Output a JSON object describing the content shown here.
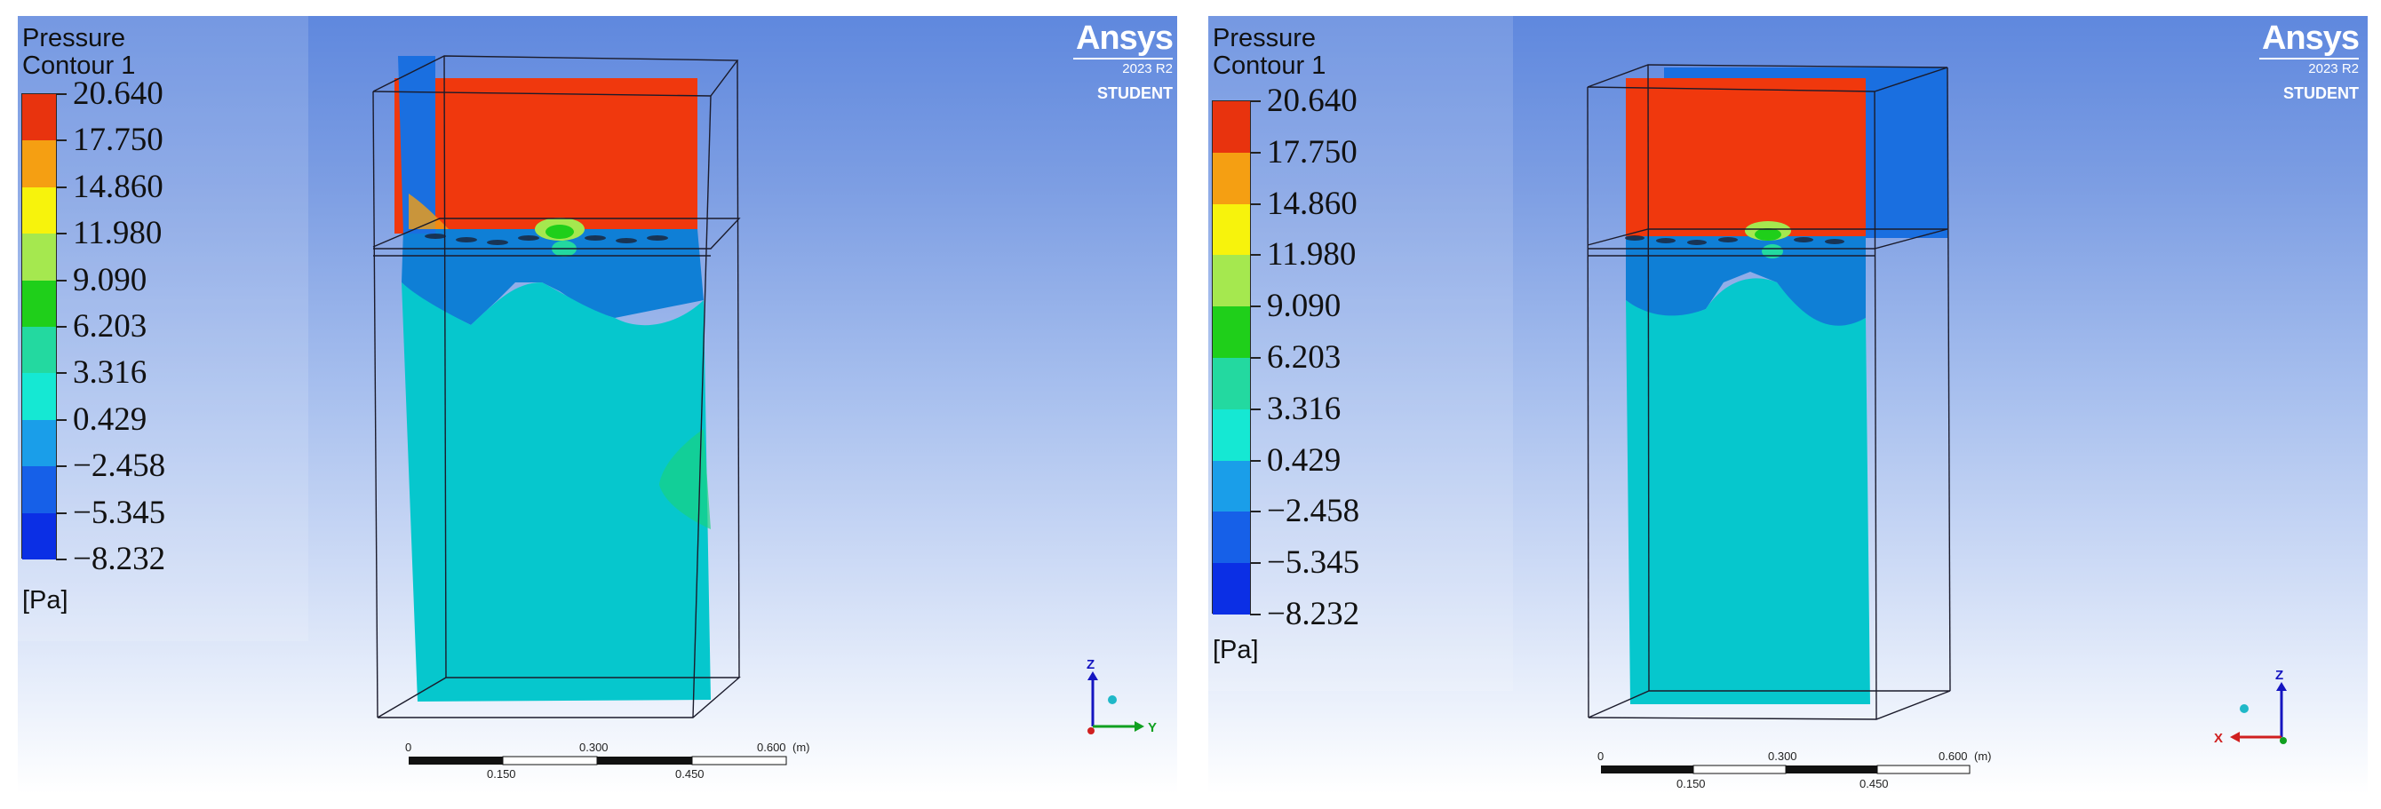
{
  "panels": [
    {
      "legend": {
        "title": "Pressure",
        "subtitle": "Contour 1",
        "values": [
          "20.640",
          "17.750",
          "14.860",
          "11.980",
          "9.090",
          "6.203",
          "3.316",
          "0.429",
          "−2.458",
          "−5.345",
          "−8.232"
        ],
        "unit": "[Pa]"
      },
      "logo": {
        "name": "Ansys",
        "version": "2023 R2",
        "edition": "STUDENT"
      },
      "scale": {
        "top_labels": [
          "0",
          "0.300",
          "0.600"
        ],
        "unit": "(m)",
        "bottom_labels": [
          "0.150",
          "0.450"
        ]
      },
      "axes": {
        "labels": [
          "Z",
          "Y"
        ]
      }
    },
    {
      "legend": {
        "title": "Pressure",
        "subtitle": "Contour 1",
        "values": [
          "20.640",
          "17.750",
          "14.860",
          "11.980",
          "9.090",
          "6.203",
          "3.316",
          "0.429",
          "−2.458",
          "−5.345",
          "−8.232"
        ],
        "unit": "[Pa]"
      },
      "logo": {
        "name": "Ansys",
        "version": "2023 R2",
        "edition": "STUDENT"
      },
      "scale": {
        "top_labels": [
          "0",
          "0.300",
          "0.600"
        ],
        "unit": "(m)",
        "bottom_labels": [
          "0.150",
          "0.450"
        ]
      },
      "axes": {
        "labels": [
          "Z",
          "X"
        ]
      }
    }
  ],
  "legend_colors": [
    "#e8330e",
    "#f59f12",
    "#f7f30c",
    "#a5e84f",
    "#1fcf1a",
    "#23d9a0",
    "#15e8d3",
    "#1a9ee9",
    "#1660e8",
    "#0b2fe5"
  ],
  "field_colors": {
    "high": "#f0380d",
    "low": "#0f7fd6",
    "mid": "#06c7cd",
    "side": "#1a6fe0",
    "hotspot": "#18d47b"
  }
}
